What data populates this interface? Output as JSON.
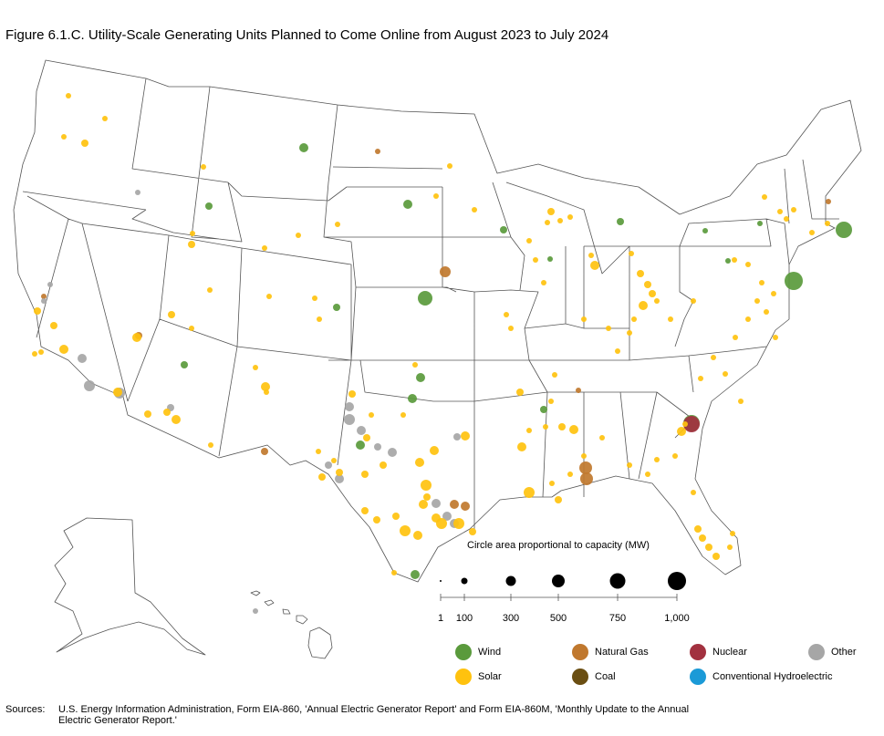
{
  "title": "Figure 6.1.C. Utility-Scale Generating Units Planned to Come Online from August 2023 to July 2024",
  "colors": {
    "wind": "#5a9a3c",
    "solar": "#ffc20e",
    "natural_gas": "#c0782e",
    "coal": "#6a4e12",
    "nuclear": "#a2313f",
    "other": "#a6a6a6",
    "hydro": "#1b9ad7",
    "border": "#555555"
  },
  "scale": {
    "title": "Circle area proportional to capacity (MW)",
    "ticks": [
      "1",
      "100",
      "300",
      "500",
      "750",
      "1,000"
    ]
  },
  "legend": [
    {
      "key": "wind",
      "label": "Wind"
    },
    {
      "key": "natural_gas",
      "label": "Natural Gas"
    },
    {
      "key": "nuclear",
      "label": "Nuclear"
    },
    {
      "key": "other",
      "label": "Other"
    },
    {
      "key": "solar",
      "label": "Solar"
    },
    {
      "key": "coal",
      "label": "Coal"
    },
    {
      "key": "hydro",
      "label": "Conventional Hydroelectric"
    }
  ],
  "sources": {
    "label": "Sources:",
    "text": "U.S. Energy Information Administration, Form EIA-860, 'Annual Electric Generator Report' and Form EIA-860M, 'Monthly Update to the Annual Electric Generator Report.'"
  }
}
